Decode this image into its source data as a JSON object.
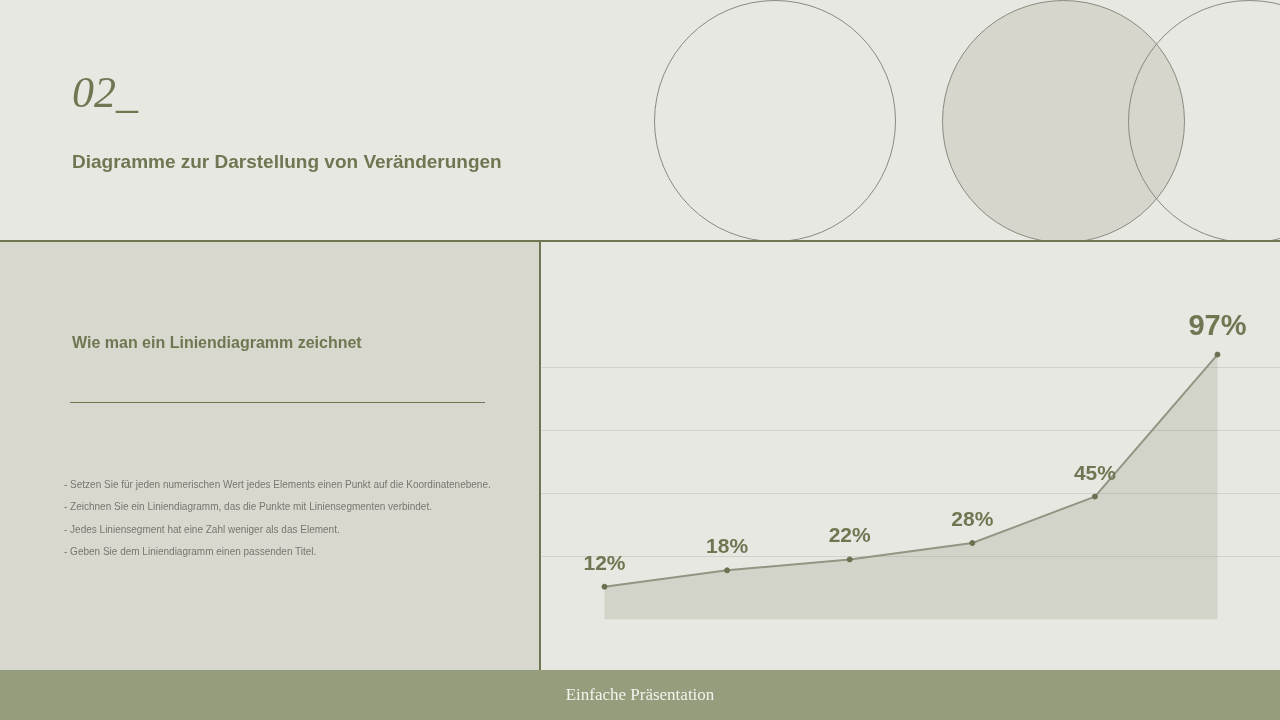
{
  "chart_data": {
    "type": "area",
    "title": "Diagramme zur Darstellung von Veränderungen",
    "subtitle": "Wie man ein Liniendiagramm zeichnet",
    "annotations": [
      "02_",
      "- Setzen Sie für jeden numerischen Wert jedes Elements einen Punkt auf die Koordinatenebene.",
      "- Zeichnen Sie ein Liniendiagramm, das die Punkte mit Liniensegmenten verbindet.",
      "- Jedes Liniensegment hat eine Zahl weniger als das Element.",
      "- Geben Sie dem Liniendiagramm einen passenden Titel.",
      "Einfache Präsentation"
    ],
    "categories": [
      null,
      null,
      null,
      null,
      null,
      null
    ],
    "series": [
      {
        "color": "#8f9681",
        "values": [
          12,
          18,
          22,
          28,
          45,
          97
        ],
        "value_labels": [
          "12%",
          "18%",
          "22%",
          "28%",
          "45%",
          "97%"
        ]
      }
    ],
    "tick_labels": false,
    "grid": "y",
    "marker": "circle",
    "line_style": "solid"
  }
}
